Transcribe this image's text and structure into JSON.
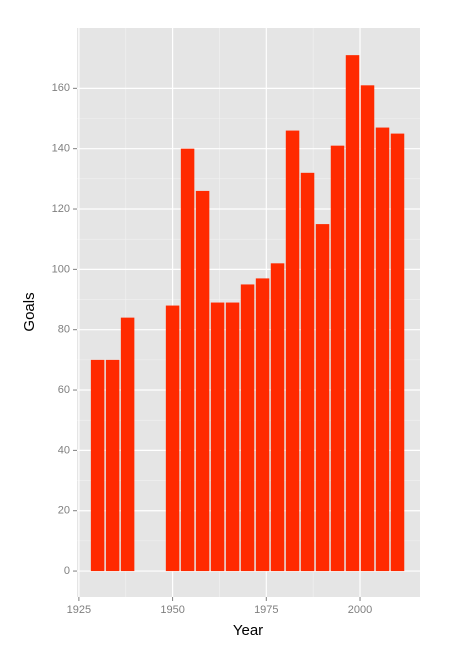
{
  "chart_data": {
    "type": "bar",
    "x": [
      1930,
      1934,
      1938,
      1950,
      1954,
      1958,
      1962,
      1966,
      1970,
      1974,
      1978,
      1982,
      1986,
      1990,
      1994,
      1998,
      2002,
      2006,
      2010
    ],
    "values": [
      70,
      70,
      84,
      88,
      140,
      126,
      89,
      89,
      95,
      97,
      102,
      146,
      132,
      115,
      141,
      171,
      161,
      147,
      145
    ],
    "color": "#ff2a00",
    "x_label": "Year",
    "y_label": "Goals",
    "xlim": [
      1924.5,
      2016
    ],
    "xticks": [
      1925,
      1950,
      1975,
      2000
    ],
    "ylim": [
      -8.6,
      180
    ],
    "yticks": [
      0,
      20,
      40,
      60,
      80,
      100,
      120,
      140,
      160
    ],
    "grid": true
  }
}
